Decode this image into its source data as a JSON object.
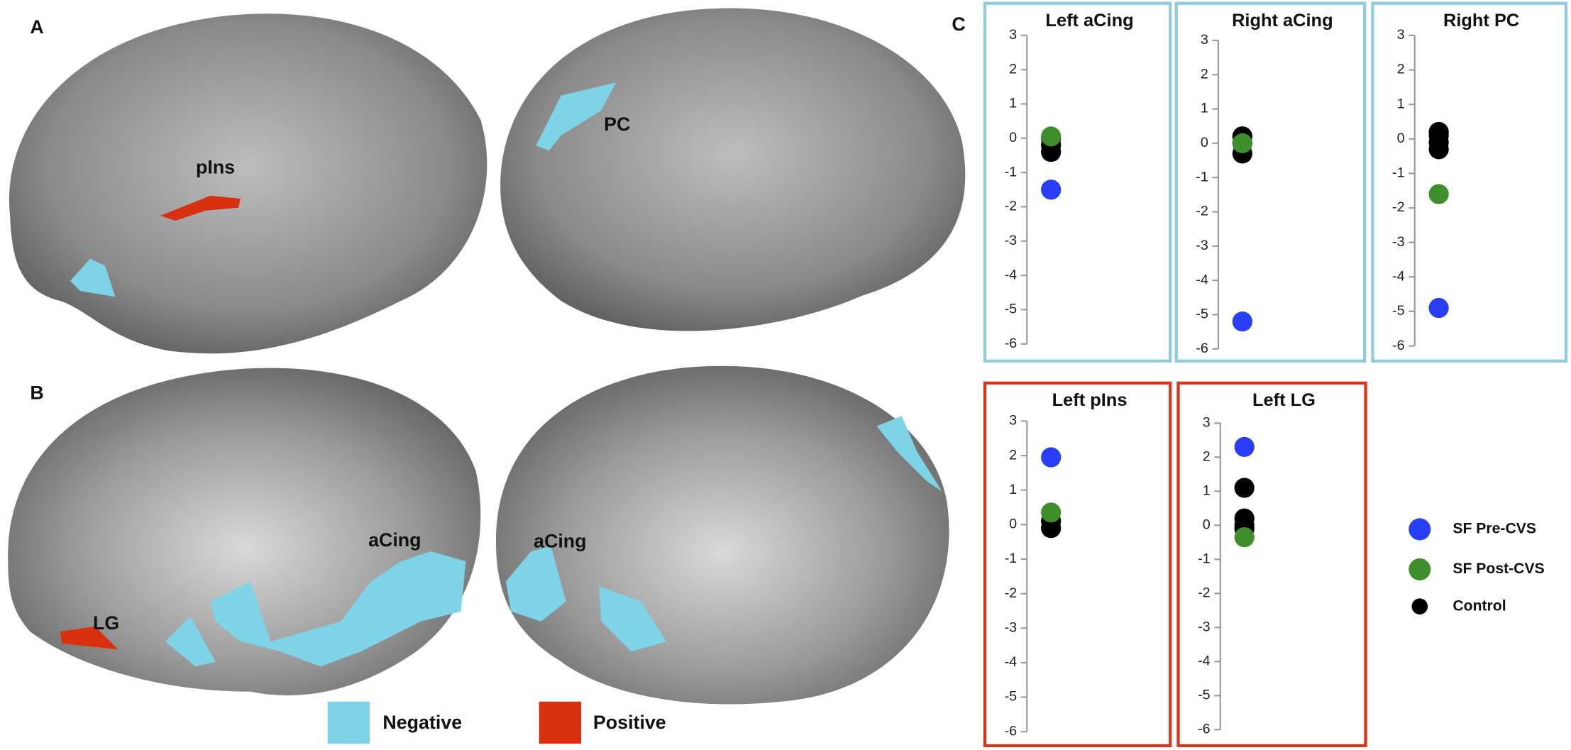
{
  "panel_labels": [
    "A",
    "B",
    "C"
  ],
  "brain_labels": [
    "pIns",
    "PC",
    "aCing",
    "aCing",
    "LG"
  ],
  "brain_legend": [
    {
      "label": "Negative",
      "color": "#7fd3e6"
    },
    {
      "label": "Positive",
      "color": "#d9300f"
    }
  ],
  "chart_data": [
    {
      "type": "scatter",
      "title": "Left aCing",
      "frame_color": "#8ccbe0",
      "ylim": [
        -6,
        3
      ],
      "yticks": [
        3,
        2,
        1,
        0,
        -1,
        -2,
        -3,
        -4,
        -5,
        -6
      ],
      "series": [
        {
          "name": "SF Pre-CVS",
          "color": "#2a3ff5",
          "values": [
            -1.5
          ]
        },
        {
          "name": "SF Post-CVS",
          "color": "#3f8e2c",
          "values": [
            0.05
          ]
        },
        {
          "name": "Control",
          "color": "#000000",
          "values": [
            -0.4,
            -0.2,
            0
          ]
        }
      ]
    },
    {
      "type": "scatter",
      "title": "Right aCing",
      "frame_color": "#8ccbe0",
      "ylim": [
        -6,
        3
      ],
      "yticks": [
        3,
        2,
        1,
        0,
        -1,
        -2,
        -3,
        -4,
        -5,
        -6
      ],
      "series": [
        {
          "name": "SF Pre-CVS",
          "color": "#2a3ff5",
          "values": [
            -5.2
          ]
        },
        {
          "name": "SF Post-CVS",
          "color": "#3f8e2c",
          "values": [
            0
          ]
        },
        {
          "name": "Control",
          "color": "#000000",
          "values": [
            -0.3,
            0,
            0.2
          ]
        }
      ]
    },
    {
      "type": "scatter",
      "title": "Right PC",
      "frame_color": "#8ccbe0",
      "ylim": [
        -6,
        3
      ],
      "yticks": [
        3,
        2,
        1,
        0,
        -1,
        -2,
        -3,
        -4,
        -5,
        -6
      ],
      "series": [
        {
          "name": "SF Pre-CVS",
          "color": "#2a3ff5",
          "values": [
            -4.9
          ]
        },
        {
          "name": "SF Post-CVS",
          "color": "#3f8e2c",
          "values": [
            -1.6
          ]
        },
        {
          "name": "Control",
          "color": "#000000",
          "values": [
            -0.3,
            -0.1,
            0.1,
            0.2
          ]
        }
      ]
    },
    {
      "type": "scatter",
      "title": "Left pIns",
      "frame_color": "#d9351e",
      "ylim": [
        -6,
        3
      ],
      "yticks": [
        3,
        2,
        1,
        0,
        -1,
        -2,
        -3,
        -4,
        -5,
        -6
      ],
      "series": [
        {
          "name": "SF Pre-CVS",
          "color": "#2a3ff5",
          "values": [
            1.95
          ]
        },
        {
          "name": "SF Post-CVS",
          "color": "#3f8e2c",
          "values": [
            0.35
          ]
        },
        {
          "name": "Control",
          "color": "#000000",
          "values": [
            -0.1,
            0.1
          ]
        }
      ]
    },
    {
      "type": "scatter",
      "title": "Left LG",
      "frame_color": "#d9351e",
      "ylim": [
        -6,
        3
      ],
      "yticks": [
        3,
        2,
        1,
        0,
        -1,
        -2,
        -3,
        -4,
        -5,
        -6
      ],
      "series": [
        {
          "name": "SF Pre-CVS",
          "color": "#2a3ff5",
          "values": [
            2.3
          ]
        },
        {
          "name": "SF Post-CVS",
          "color": "#3f8e2c",
          "values": [
            -0.35
          ]
        },
        {
          "name": "Control",
          "color": "#000000",
          "values": [
            1.1,
            0.2,
            0,
            -0.1
          ]
        }
      ]
    }
  ]
}
